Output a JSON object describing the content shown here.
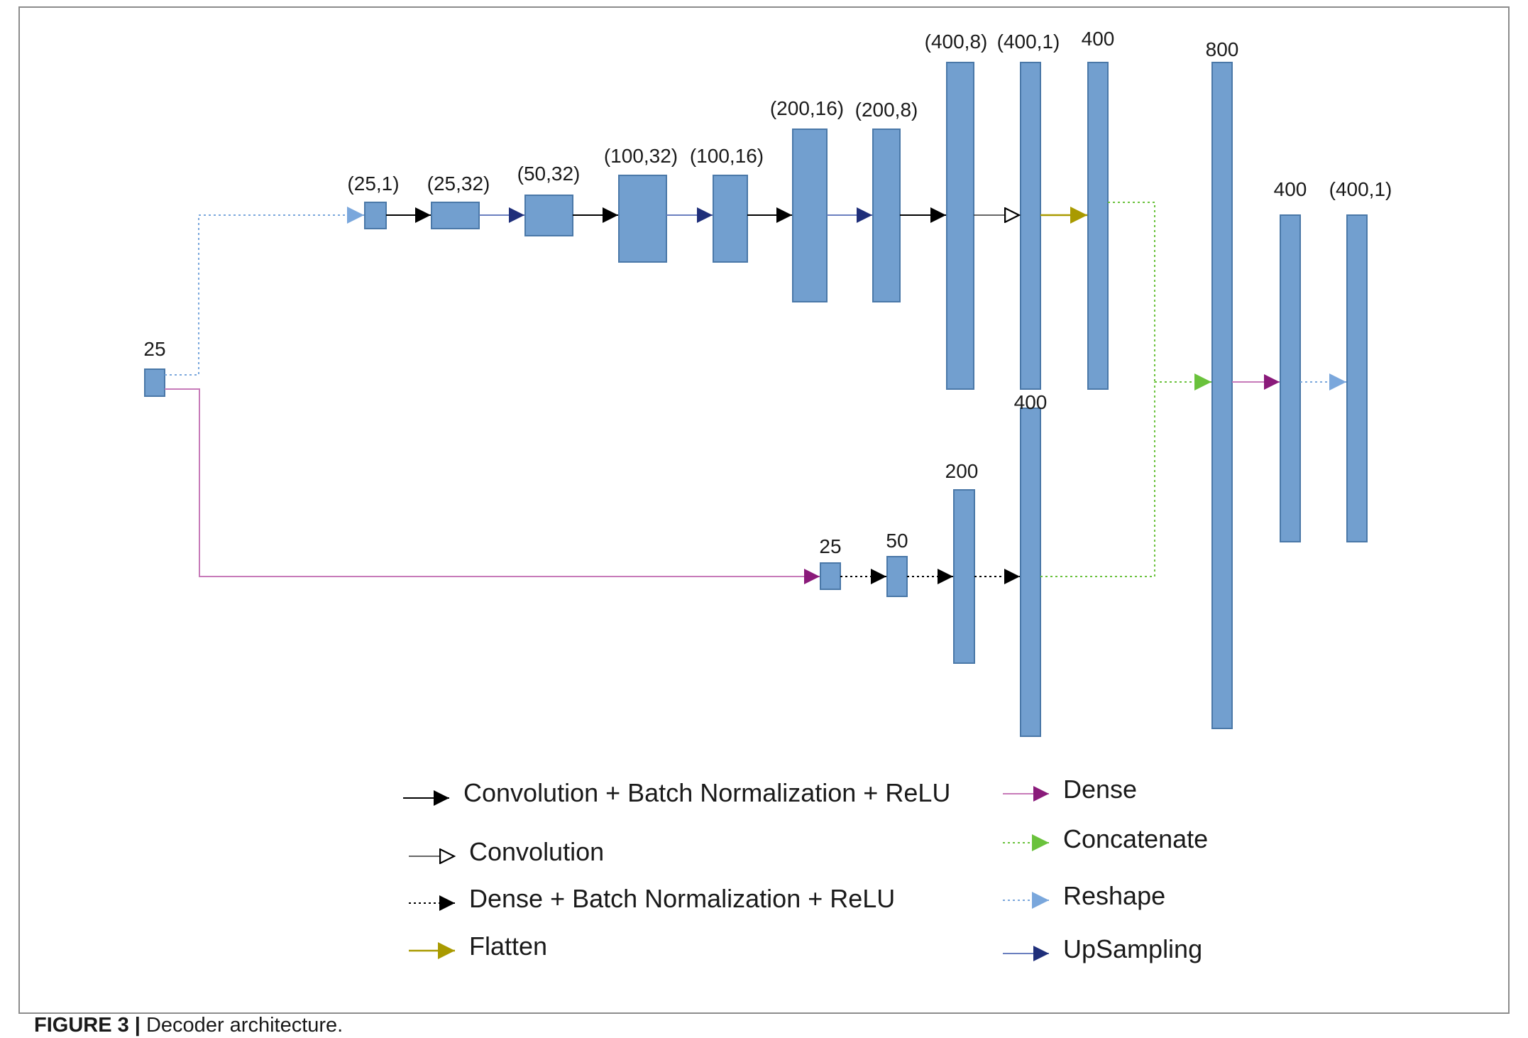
{
  "caption": {
    "label": "FIGURE 3 |",
    "text": "Decoder architecture."
  },
  "colors": {
    "block_fill": "#729fcf",
    "block_stroke": "#4a78a8",
    "conv_bn_relu": "#000000",
    "upsampling": "#1f2f7a",
    "dense": "#8a1a7a",
    "concatenate": "#6ac23c",
    "reshape": "#7aa7dc",
    "flatten": "#a99a00"
  },
  "blocks": {
    "input": "25",
    "top": [
      "(25,1)",
      "(25,32)",
      "(50,32)",
      "(100,32)",
      "(100,16)",
      "(200,16)",
      "(200,8)",
      "(400,8)",
      "(400,1)",
      "400"
    ],
    "bottom": [
      "25",
      "50",
      "200",
      "400"
    ],
    "merge": [
      "800",
      "400",
      "(400,1)"
    ]
  },
  "legend": {
    "conv_bn_relu": "Convolution + Batch Normalization + ReLU",
    "conv": "Convolution",
    "dense_bn_relu": "Dense + Batch Normalization + ReLU",
    "flatten": "Flatten",
    "dense": "Dense",
    "concatenate": "Concatenate",
    "reshape": "Reshape",
    "upsampling": "UpSampling"
  }
}
